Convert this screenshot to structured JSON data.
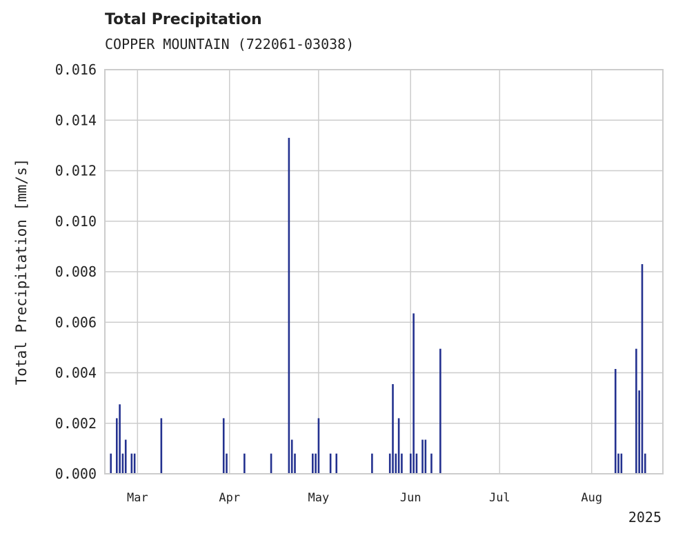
{
  "chart_data": {
    "type": "bar",
    "title": "Total Precipitation",
    "subtitle": "COPPER MOUNTAIN (722061-03038)",
    "ylabel": "Total Precipitation [mm/s]",
    "xlabel": "",
    "year_label": "2025",
    "ylim": [
      0,
      0.016
    ],
    "xlim": [
      "2025-02-18",
      "2025-08-25"
    ],
    "grid": true,
    "bar_color": "#23318f",
    "y_ticks": [
      {
        "value": 0.0,
        "label": "0.000"
      },
      {
        "value": 0.002,
        "label": "0.002"
      },
      {
        "value": 0.004,
        "label": "0.004"
      },
      {
        "value": 0.006,
        "label": "0.006"
      },
      {
        "value": 0.008,
        "label": "0.008"
      },
      {
        "value": 0.01,
        "label": "0.010"
      },
      {
        "value": 0.012,
        "label": "0.012"
      },
      {
        "value": 0.014,
        "label": "0.014"
      },
      {
        "value": 0.016,
        "label": "0.016"
      }
    ],
    "x_ticks": [
      {
        "date": "2025-03-01",
        "label": "Mar"
      },
      {
        "date": "2025-04-01",
        "label": "Apr"
      },
      {
        "date": "2025-05-01",
        "label": "May"
      },
      {
        "date": "2025-06-01",
        "label": "Jun"
      },
      {
        "date": "2025-07-01",
        "label": "Jul"
      },
      {
        "date": "2025-08-01",
        "label": "Aug"
      }
    ],
    "points": [
      {
        "date": "2025-02-20",
        "value": 0.0008
      },
      {
        "date": "2025-02-22",
        "value": 0.0022
      },
      {
        "date": "2025-02-23",
        "value": 0.00275
      },
      {
        "date": "2025-02-24",
        "value": 0.0008
      },
      {
        "date": "2025-02-25",
        "value": 0.00135
      },
      {
        "date": "2025-02-27",
        "value": 0.0008
      },
      {
        "date": "2025-02-28",
        "value": 0.0008
      },
      {
        "date": "2025-03-09",
        "value": 0.0022
      },
      {
        "date": "2025-03-30",
        "value": 0.0022
      },
      {
        "date": "2025-03-31",
        "value": 0.0008
      },
      {
        "date": "2025-04-06",
        "value": 0.0008
      },
      {
        "date": "2025-04-15",
        "value": 0.0008
      },
      {
        "date": "2025-04-21",
        "value": 0.0133
      },
      {
        "date": "2025-04-22",
        "value": 0.00135
      },
      {
        "date": "2025-04-23",
        "value": 0.0008
      },
      {
        "date": "2025-04-29",
        "value": 0.0008
      },
      {
        "date": "2025-04-30",
        "value": 0.0008
      },
      {
        "date": "2025-05-01",
        "value": 0.0022
      },
      {
        "date": "2025-05-05",
        "value": 0.0008
      },
      {
        "date": "2025-05-07",
        "value": 0.0008
      },
      {
        "date": "2025-05-19",
        "value": 0.0008
      },
      {
        "date": "2025-05-25",
        "value": 0.0008
      },
      {
        "date": "2025-05-26",
        "value": 0.00355
      },
      {
        "date": "2025-05-27",
        "value": 0.0008
      },
      {
        "date": "2025-05-28",
        "value": 0.0022
      },
      {
        "date": "2025-05-29",
        "value": 0.0008
      },
      {
        "date": "2025-06-01",
        "value": 0.0008
      },
      {
        "date": "2025-06-02",
        "value": 0.00635
      },
      {
        "date": "2025-06-03",
        "value": 0.0008
      },
      {
        "date": "2025-06-05",
        "value": 0.00135
      },
      {
        "date": "2025-06-06",
        "value": 0.00135
      },
      {
        "date": "2025-06-08",
        "value": 0.0008
      },
      {
        "date": "2025-06-11",
        "value": 0.00495
      },
      {
        "date": "2025-08-09",
        "value": 0.00415
      },
      {
        "date": "2025-08-10",
        "value": 0.0008
      },
      {
        "date": "2025-08-11",
        "value": 0.0008
      },
      {
        "date": "2025-08-16",
        "value": 0.00495
      },
      {
        "date": "2025-08-17",
        "value": 0.0033
      },
      {
        "date": "2025-08-18",
        "value": 0.0083
      },
      {
        "date": "2025-08-19",
        "value": 0.0008
      }
    ]
  }
}
